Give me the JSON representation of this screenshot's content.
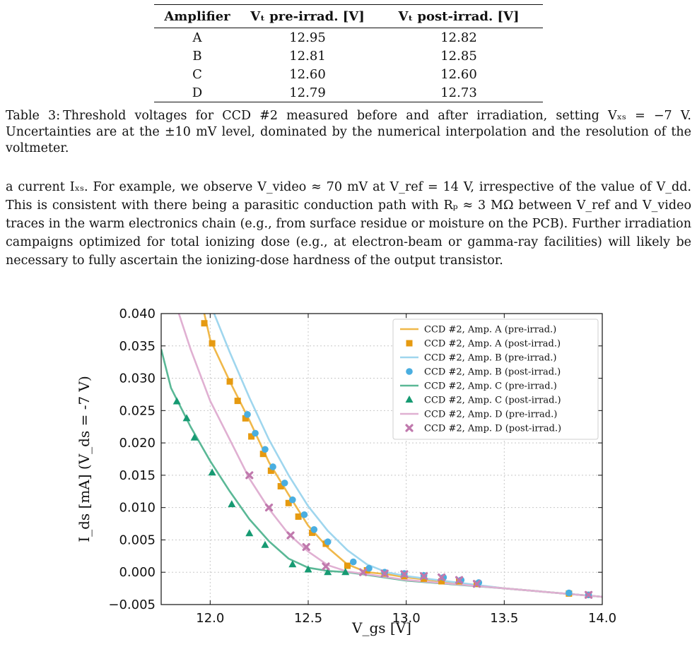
{
  "table": {
    "headers": [
      "Amplifier",
      "Vₜ pre-irrad. [V]",
      "Vₜ post-irrad. [V]"
    ],
    "rows": [
      [
        "A",
        "12.95",
        "12.82"
      ],
      [
        "B",
        "12.81",
        "12.85"
      ],
      [
        "C",
        "12.60",
        "12.60"
      ],
      [
        "D",
        "12.79",
        "12.73"
      ]
    ]
  },
  "caption": {
    "label": "Table 3:",
    "text": "Threshold voltages for CCD #2 measured before and after irradiation, setting Vₓₛ = −7 V. Uncertainties are at the ±10 mV level, dominated by the numerical interpolation and the resolution of the voltmeter."
  },
  "paragraph": "a current Iₓₛ. For example, we observe V_video ≈ 70 mV at V_ref = 14 V, irrespective of the value of V_dd. This is consistent with there being a parasitic conduction path with Rₚ ≈ 3 MΩ between V_ref and V_video traces in the warm electronics chain (e.g., from surface residue or moisture on the PCB). Further irradiation campaigns optimized for total ionizing dose (e.g., at electron-beam or gamma-ray facilities) will likely be necessary to fully ascertain the ionizing-dose hardness of the output transistor.",
  "chart_data": {
    "type": "line",
    "xlabel": "V_gs [V]",
    "ylabel": "I_ds [mA]   (V_ds = -7 V)",
    "xlim": [
      11.75,
      14.0
    ],
    "ylim": [
      -0.005,
      0.04
    ],
    "xticks": [
      12.0,
      12.5,
      13.0,
      13.5,
      14.0
    ],
    "yticks": [
      -0.005,
      0.0,
      0.005,
      0.01,
      0.015,
      0.02,
      0.025,
      0.03,
      0.035,
      0.04
    ],
    "xtick_labels": [
      "12.0",
      "12.5",
      "13.0",
      "13.5",
      "14.0"
    ],
    "ytick_labels": [
      "−0.005",
      "0.000",
      "0.005",
      "0.010",
      "0.015",
      "0.020",
      "0.025",
      "0.030",
      "0.035",
      "0.040"
    ],
    "grid": true,
    "legend_position": "top-right",
    "series": [
      {
        "name": "CCD #2, Amp. A (pre-irrad.)",
        "kind": "line",
        "color": "#f0b84a",
        "x": [
          11.97,
          12.0,
          12.1,
          12.2,
          12.3,
          12.4,
          12.5,
          12.6,
          12.7,
          12.8,
          12.9,
          13.0,
          13.5,
          14.0
        ],
        "y": [
          0.04,
          0.036,
          0.0295,
          0.0235,
          0.017,
          0.012,
          0.0072,
          0.0038,
          0.0012,
          0.0,
          -0.0003,
          -0.0008,
          -0.0025,
          -0.0038
        ]
      },
      {
        "name": "CCD #2, Amp. A (post-irrad.)",
        "kind": "square",
        "color": "#e69a10",
        "x": [
          11.97,
          12.01,
          12.1,
          12.14,
          12.18,
          12.21,
          12.27,
          12.31,
          12.36,
          12.4,
          12.45,
          12.52,
          12.59,
          12.7,
          12.8,
          12.89,
          12.99,
          13.09,
          13.18,
          13.27,
          13.36,
          13.83,
          13.93
        ],
        "y": [
          0.0385,
          0.0354,
          0.0295,
          0.0265,
          0.0238,
          0.021,
          0.0183,
          0.0157,
          0.0133,
          0.0107,
          0.0086,
          0.0061,
          0.0044,
          0.001,
          0.0003,
          -0.0002,
          -0.0006,
          -0.001,
          -0.0014,
          -0.0014,
          -0.0018,
          -0.0033,
          -0.0035
        ]
      },
      {
        "name": "CCD #2, Amp. B (pre-irrad.)",
        "kind": "line",
        "color": "#9fd6ee",
        "x": [
          12.02,
          12.1,
          12.2,
          12.3,
          12.4,
          12.5,
          12.6,
          12.7,
          12.8,
          12.9,
          13.0,
          13.5,
          14.0
        ],
        "y": [
          0.04,
          0.034,
          0.027,
          0.0205,
          0.015,
          0.0102,
          0.0064,
          0.0034,
          0.0012,
          0.0,
          -0.0006,
          -0.0025,
          -0.0038
        ]
      },
      {
        "name": "CCD #2, Amp. B (post-irrad.)",
        "kind": "circle",
        "color": "#4aaee0",
        "x": [
          12.19,
          12.23,
          12.28,
          12.32,
          12.38,
          12.42,
          12.48,
          12.53,
          12.6,
          12.73,
          12.81,
          12.89,
          12.99,
          13.09,
          13.19,
          13.28,
          13.37,
          13.83,
          13.93
        ],
        "y": [
          0.0244,
          0.0215,
          0.019,
          0.0163,
          0.0138,
          0.0112,
          0.0089,
          0.0066,
          0.0047,
          0.0016,
          0.0006,
          0.0,
          -0.0002,
          -0.0005,
          -0.0008,
          -0.0012,
          -0.0016,
          -0.0032,
          -0.0035
        ]
      },
      {
        "name": "CCD #2, Amp. C (pre-irrad.)",
        "kind": "line",
        "color": "#5ab896",
        "x": [
          11.75,
          11.8,
          11.9,
          12.0,
          12.1,
          12.2,
          12.3,
          12.4,
          12.5,
          12.6,
          12.7,
          12.8,
          13.0,
          13.5,
          14.0
        ],
        "y": [
          0.0345,
          0.0285,
          0.0225,
          0.0172,
          0.0125,
          0.0082,
          0.0048,
          0.0021,
          0.0007,
          0.0002,
          0.0,
          -0.0004,
          -0.0013,
          -0.0025,
          -0.0038
        ]
      },
      {
        "name": "CCD #2, Amp. C (post-irrad.)",
        "kind": "triangle",
        "color": "#169a72",
        "x": [
          11.83,
          11.88,
          11.92,
          12.01,
          12.11,
          12.2,
          12.28,
          12.42,
          12.5,
          12.6,
          12.69
        ],
        "y": [
          0.0264,
          0.0238,
          0.0208,
          0.0154,
          0.0105,
          0.006,
          0.0042,
          0.0012,
          0.0004,
          0.0,
          0.0
        ]
      },
      {
        "name": "CCD #2, Amp. D (pre-irrad.)",
        "kind": "line",
        "color": "#e0b0d2",
        "x": [
          11.84,
          11.9,
          12.0,
          12.1,
          12.2,
          12.3,
          12.4,
          12.5,
          12.6,
          12.7,
          12.8,
          13.0,
          13.5,
          14.0
        ],
        "y": [
          0.04,
          0.0345,
          0.0265,
          0.0205,
          0.0145,
          0.0098,
          0.0059,
          0.0032,
          0.0011,
          0.0001,
          -0.0003,
          -0.0012,
          -0.0025,
          -0.0038
        ]
      },
      {
        "name": "CCD #2, Amp. D (post-irrad.)",
        "kind": "cross",
        "color": "#c079ad",
        "x": [
          12.2,
          12.3,
          12.41,
          12.49,
          12.59,
          12.78,
          12.89,
          12.99,
          13.09,
          13.18,
          13.27,
          13.36,
          13.93
        ],
        "y": [
          0.015,
          0.01,
          0.0057,
          0.0039,
          0.0009,
          0.0,
          -0.0002,
          -0.0003,
          -0.0006,
          -0.0008,
          -0.0012,
          -0.0018,
          -0.0035
        ]
      }
    ]
  }
}
